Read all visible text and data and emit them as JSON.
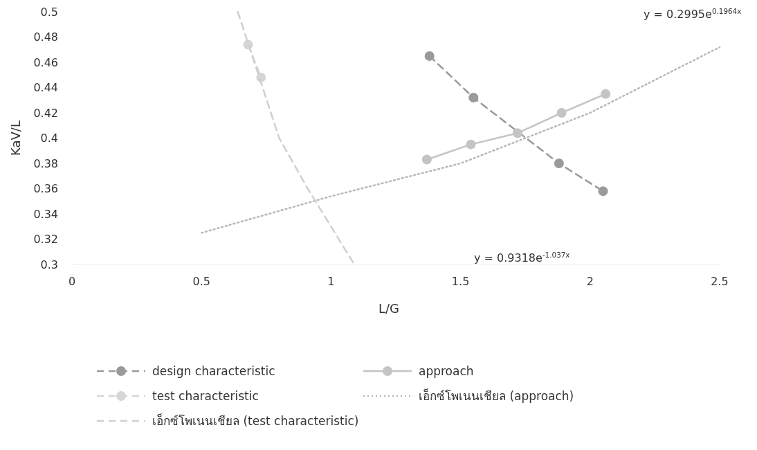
{
  "chart_data": {
    "type": "line",
    "xlabel": "L/G",
    "ylabel": "KaV/L",
    "xlim": [
      0,
      2.5
    ],
    "ylim": [
      0.3,
      0.5
    ],
    "xticks": [
      0,
      0.5,
      1,
      1.5,
      2,
      2.5
    ],
    "yticks": [
      0.3,
      0.32,
      0.34,
      0.36,
      0.38,
      0.4,
      0.42,
      0.44,
      0.46,
      0.48,
      0.5
    ],
    "grid": false,
    "legend": "bottom",
    "series": [
      {
        "name": "design characteristic",
        "color": "#9a9a9a",
        "x": [
          1.38,
          1.55,
          1.72,
          1.88,
          2.05
        ],
        "values": [
          0.465,
          0.432,
          null,
          0.38,
          0.358
        ],
        "marker": "circle",
        "line_style": "dashed"
      },
      {
        "name": "approach",
        "color": "#c4c4c4",
        "x": [
          1.37,
          1.54,
          1.72,
          1.89,
          2.06
        ],
        "values": [
          0.383,
          0.395,
          0.404,
          0.42,
          0.435
        ],
        "marker": "circle",
        "line_style": "solid"
      },
      {
        "name": "test characteristic",
        "color": "#d6d6d6",
        "x": [
          0.68,
          0.73
        ],
        "values": [
          0.474,
          0.448
        ],
        "marker": "circle",
        "line_style": "dashed"
      },
      {
        "name": "เอ็กซ์โพเนนเชียล (approach)",
        "color": "#b8b8b8",
        "x": [
          0.5,
          1.0,
          1.5,
          2.0,
          2.5
        ],
        "values": [
          0.325,
          0.354,
          0.38,
          0.42,
          0.472
        ],
        "marker": "none",
        "line_style": "dotted"
      },
      {
        "name": "เอ็กซ์โพเนนเชียล (test characteristic)",
        "color": "#cfcfcf",
        "x": [
          0.64,
          0.8,
          0.91,
          1.09
        ],
        "values": [
          0.5,
          0.4,
          0.36,
          0.3
        ],
        "marker": "none",
        "line_style": "dashed"
      }
    ],
    "annotations": [
      "y = 0.2995e$^{0.1964x}$",
      "y = 0.9318e$^{-1.037x}$"
    ]
  }
}
